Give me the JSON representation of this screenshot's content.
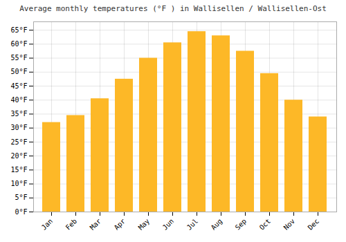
{
  "chart_data": {
    "type": "bar",
    "title": "Average monthly temperatures (°F ) in Wallisellen / Wallisellen-Ost",
    "categories": [
      "Jan",
      "Feb",
      "Mar",
      "Apr",
      "May",
      "Jun",
      "Jul",
      "Aug",
      "Sep",
      "Oct",
      "Nov",
      "Dec"
    ],
    "values": [
      32,
      34.5,
      40.5,
      47.5,
      55,
      60.5,
      64.5,
      63,
      57.5,
      49.5,
      40,
      34
    ],
    "color": "#FDB827",
    "ylim": [
      0,
      68
    ],
    "yticks": [
      {
        "value": 0,
        "label": "0°F"
      },
      {
        "value": 5,
        "label": "5°F"
      },
      {
        "value": 10,
        "label": "10°F"
      },
      {
        "value": 15,
        "label": "15°F"
      },
      {
        "value": 20,
        "label": "20°F"
      },
      {
        "value": 25,
        "label": "25°F"
      },
      {
        "value": 30,
        "label": "30°F"
      },
      {
        "value": 35,
        "label": "35°F"
      },
      {
        "value": 40,
        "label": "40°F"
      },
      {
        "value": 45,
        "label": "45°F"
      },
      {
        "value": 50,
        "label": "50°F"
      },
      {
        "value": 55,
        "label": "55°F"
      },
      {
        "value": 60,
        "label": "60°F"
      },
      {
        "value": 65,
        "label": "65°F"
      }
    ],
    "grid": true
  }
}
